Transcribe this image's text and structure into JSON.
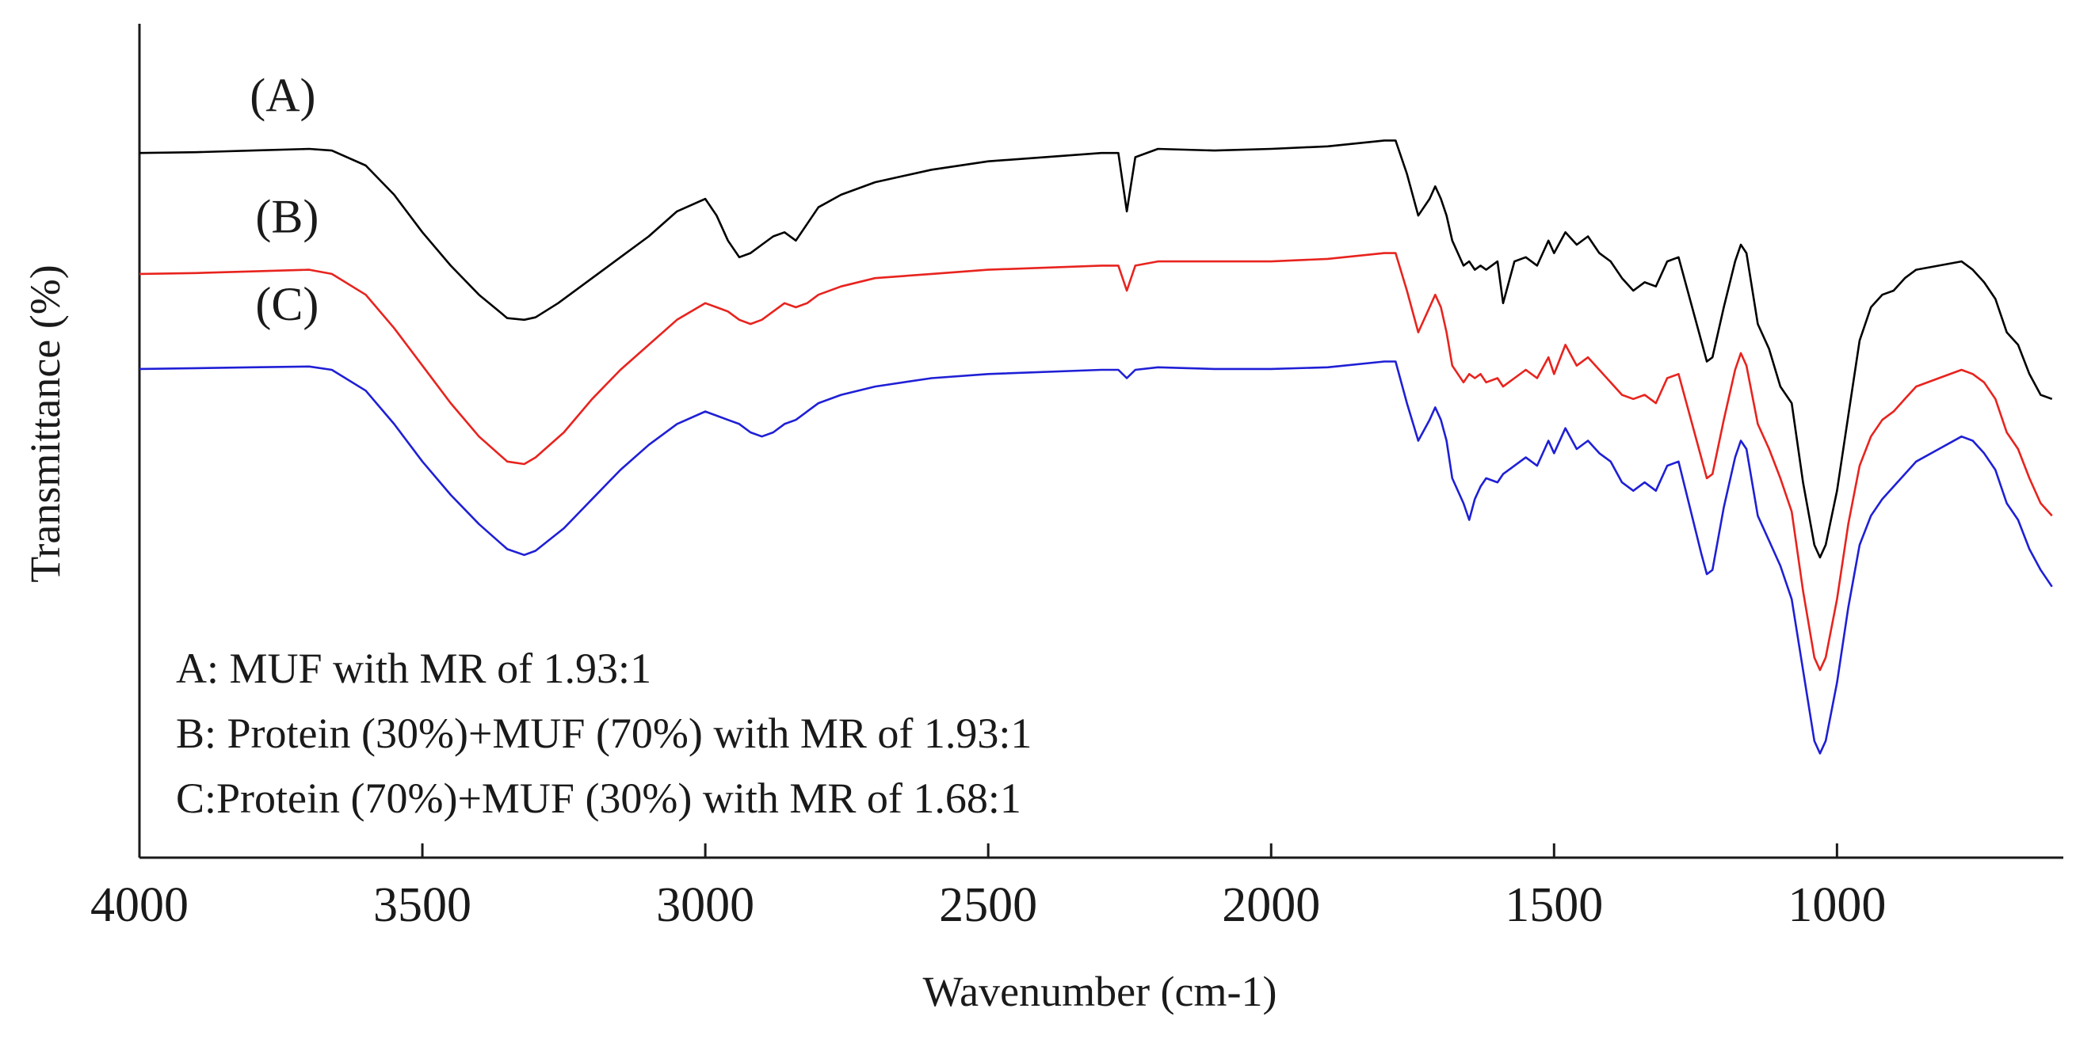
{
  "chart_data": {
    "type": "line",
    "title": "",
    "xlabel": "Wavenumber (cm-1)",
    "ylabel": "Transmittance (%)",
    "xlim": [
      4000,
      600
    ],
    "x_reversed": true,
    "ylim": [
      0,
      100
    ],
    "y_tick_labels_shown": false,
    "x_ticks": [
      4000,
      3500,
      3000,
      2500,
      2000,
      1500,
      1000
    ],
    "x_tick_labels": [
      "4000",
      "3500",
      "3000",
      "2500",
      "2000",
      "1500",
      "1000"
    ],
    "grid": false,
    "series": [
      {
        "name": "(A)",
        "color": "#000000",
        "x": [
          4000,
          3900,
          3800,
          3700,
          3660,
          3600,
          3550,
          3500,
          3450,
          3400,
          3350,
          3320,
          3300,
          3260,
          3200,
          3150,
          3100,
          3050,
          3000,
          2980,
          2960,
          2940,
          2920,
          2900,
          2880,
          2860,
          2840,
          2820,
          2800,
          2760,
          2700,
          2600,
          2500,
          2300,
          2270,
          2255,
          2240,
          2200,
          2100,
          2000,
          1900,
          1800,
          1780,
          1760,
          1740,
          1720,
          1710,
          1700,
          1690,
          1680,
          1660,
          1650,
          1640,
          1630,
          1620,
          1600,
          1590,
          1570,
          1550,
          1530,
          1510,
          1500,
          1480,
          1460,
          1440,
          1420,
          1400,
          1380,
          1360,
          1340,
          1320,
          1300,
          1280,
          1260,
          1240,
          1230,
          1220,
          1200,
          1180,
          1170,
          1160,
          1140,
          1120,
          1100,
          1080,
          1060,
          1040,
          1030,
          1020,
          1000,
          980,
          960,
          940,
          920,
          900,
          880,
          860,
          820,
          780,
          760,
          740,
          720,
          700,
          680,
          660,
          640,
          620
        ],
        "values": [
          84.5,
          84.6,
          84.8,
          85.0,
          84.8,
          83.0,
          79.5,
          75.0,
          71.0,
          67.5,
          64.7,
          64.5,
          64.8,
          66.5,
          69.5,
          72.0,
          74.5,
          77.5,
          79.0,
          77.0,
          74.0,
          72.0,
          72.5,
          73.5,
          74.5,
          75.0,
          74.0,
          76.0,
          78.0,
          79.5,
          81.0,
          82.5,
          83.5,
          84.5,
          84.5,
          77.5,
          84.0,
          85.0,
          84.8,
          85.0,
          85.3,
          86.0,
          86.0,
          82.0,
          77.0,
          79.0,
          80.5,
          79.0,
          77.0,
          74.0,
          71.0,
          71.5,
          70.5,
          71.0,
          70.5,
          71.5,
          66.5,
          71.5,
          72.0,
          71.0,
          74.0,
          72.5,
          75.0,
          73.5,
          74.5,
          72.5,
          71.5,
          69.5,
          68.0,
          69.0,
          68.5,
          71.5,
          72.0,
          67.0,
          62.0,
          59.5,
          60.0,
          66.0,
          71.5,
          73.5,
          72.5,
          64.0,
          61.0,
          56.5,
          54.5,
          45.0,
          37.5,
          36.0,
          37.5,
          44.0,
          53.0,
          62.0,
          66.0,
          67.5,
          68.0,
          69.5,
          70.5,
          71.0,
          71.5,
          70.5,
          69.0,
          67.0,
          63.0,
          61.5,
          58.0,
          55.5,
          55.0
        ]
      },
      {
        "name": "(B)",
        "color": "#e8231e",
        "x": [
          4000,
          3900,
          3800,
          3700,
          3660,
          3600,
          3550,
          3500,
          3450,
          3400,
          3350,
          3320,
          3300,
          3250,
          3200,
          3150,
          3100,
          3050,
          3000,
          2980,
          2960,
          2940,
          2920,
          2900,
          2880,
          2860,
          2840,
          2820,
          2800,
          2760,
          2700,
          2600,
          2500,
          2300,
          2270,
          2255,
          2240,
          2200,
          2100,
          2000,
          1900,
          1800,
          1780,
          1760,
          1740,
          1720,
          1710,
          1700,
          1690,
          1680,
          1660,
          1650,
          1640,
          1630,
          1620,
          1600,
          1590,
          1570,
          1550,
          1530,
          1510,
          1500,
          1480,
          1460,
          1440,
          1420,
          1400,
          1380,
          1360,
          1340,
          1320,
          1300,
          1280,
          1260,
          1240,
          1230,
          1220,
          1200,
          1180,
          1170,
          1160,
          1140,
          1120,
          1100,
          1080,
          1060,
          1040,
          1030,
          1020,
          1000,
          980,
          960,
          940,
          920,
          900,
          880,
          860,
          820,
          780,
          760,
          740,
          720,
          700,
          680,
          660,
          640,
          620
        ],
        "values": [
          70.0,
          70.1,
          70.3,
          70.5,
          70.0,
          67.5,
          63.5,
          59.0,
          54.5,
          50.5,
          47.5,
          47.2,
          48.0,
          51.0,
          55.0,
          58.5,
          61.5,
          64.5,
          66.5,
          66.0,
          65.5,
          64.5,
          64.0,
          64.5,
          65.5,
          66.5,
          66.0,
          66.5,
          67.5,
          68.5,
          69.5,
          70.0,
          70.5,
          71.0,
          71.0,
          68.0,
          71.0,
          71.5,
          71.5,
          71.5,
          71.8,
          72.5,
          72.5,
          68.0,
          63.0,
          66.0,
          67.5,
          66.0,
          63.0,
          59.0,
          57.0,
          58.0,
          57.5,
          58.0,
          57.0,
          57.5,
          56.5,
          57.5,
          58.5,
          57.5,
          60.0,
          58.0,
          61.5,
          59.0,
          60.0,
          58.5,
          57.0,
          55.5,
          55.0,
          55.5,
          54.5,
          57.5,
          58.0,
          53.0,
          48.0,
          45.5,
          46.0,
          52.5,
          58.5,
          60.5,
          59.0,
          52.0,
          49.0,
          45.5,
          41.5,
          32.0,
          24.0,
          22.5,
          24.0,
          31.0,
          40.0,
          47.0,
          50.5,
          52.5,
          53.5,
          55.0,
          56.5,
          57.5,
          58.5,
          58.0,
          57.0,
          55.0,
          51.0,
          49.0,
          45.5,
          42.5,
          41.0
        ]
      },
      {
        "name": "(C)",
        "color": "#1f1fd6",
        "x": [
          4000,
          3900,
          3800,
          3700,
          3660,
          3600,
          3550,
          3500,
          3450,
          3400,
          3350,
          3320,
          3300,
          3250,
          3200,
          3150,
          3100,
          3050,
          3000,
          2980,
          2960,
          2940,
          2920,
          2900,
          2880,
          2860,
          2840,
          2820,
          2800,
          2760,
          2700,
          2600,
          2500,
          2300,
          2270,
          2255,
          2240,
          2200,
          2100,
          2000,
          1900,
          1800,
          1780,
          1760,
          1740,
          1720,
          1710,
          1700,
          1690,
          1680,
          1660,
          1650,
          1640,
          1630,
          1620,
          1600,
          1590,
          1570,
          1550,
          1530,
          1510,
          1500,
          1480,
          1460,
          1440,
          1420,
          1400,
          1380,
          1360,
          1340,
          1320,
          1300,
          1280,
          1260,
          1240,
          1230,
          1220,
          1200,
          1180,
          1170,
          1160,
          1140,
          1120,
          1100,
          1080,
          1060,
          1040,
          1030,
          1020,
          1000,
          980,
          960,
          940,
          920,
          900,
          880,
          860,
          820,
          780,
          760,
          740,
          720,
          700,
          680,
          660,
          640,
          620
        ],
        "values": [
          58.6,
          58.7,
          58.8,
          58.9,
          58.5,
          56.0,
          52.0,
          47.5,
          43.5,
          40.0,
          37.0,
          36.3,
          36.8,
          39.5,
          43.0,
          46.5,
          49.5,
          52.0,
          53.5,
          53.0,
          52.5,
          52.0,
          51.0,
          50.5,
          51.0,
          52.0,
          52.5,
          53.5,
          54.5,
          55.5,
          56.5,
          57.5,
          58.0,
          58.5,
          58.5,
          57.5,
          58.5,
          58.8,
          58.6,
          58.6,
          58.8,
          59.5,
          59.5,
          54.5,
          50.0,
          52.5,
          54.0,
          52.5,
          50.0,
          45.5,
          42.5,
          40.5,
          43.0,
          44.5,
          45.5,
          45.0,
          46.0,
          47.0,
          48.0,
          47.0,
          50.0,
          48.5,
          51.5,
          49.0,
          50.0,
          48.5,
          47.5,
          45.0,
          44.0,
          45.0,
          44.0,
          47.0,
          47.5,
          42.0,
          36.5,
          34.0,
          34.5,
          42.0,
          48.0,
          50.0,
          49.0,
          41.0,
          38.0,
          35.0,
          31.0,
          22.5,
          14.0,
          12.5,
          14.0,
          21.0,
          30.0,
          37.5,
          41.0,
          43.0,
          44.5,
          46.0,
          47.5,
          49.0,
          50.5,
          50.0,
          48.5,
          46.5,
          42.5,
          40.5,
          37.0,
          34.5,
          32.5
        ]
      }
    ],
    "curve_labels": [
      {
        "text": "(A)",
        "x": 3805,
        "y": 89.5
      },
      {
        "text": "(B)",
        "x": 3795,
        "y": 75.0
      },
      {
        "text": "(C)",
        "x": 3795,
        "y": 64.5
      }
    ],
    "legend_placement": "bottom-left",
    "legend_lines": [
      "A: MUF with MR of 1.93:1",
      "B: Protein (30%)+MUF (70%) with MR of 1.93:1",
      "C:Protein (70%)+MUF (30%) with MR of 1.68:1"
    ]
  }
}
